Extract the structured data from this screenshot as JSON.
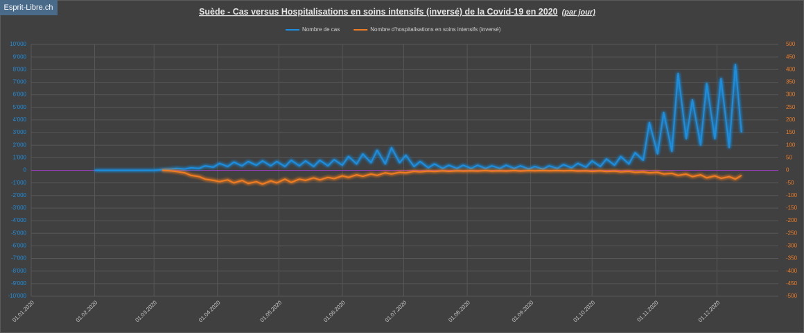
{
  "logo": "Esprit-Libre.ch",
  "chart_data": {
    "type": "line",
    "title": "Suède - Cas versus Hospitalisations en soins intensifs (inversé) de la Covid-19 en 2020",
    "subtitle": "(par jour)",
    "x": [
      "01.02.2020",
      "15.02.2020",
      "01.03.2020",
      "05.03.2020",
      "09.03.2020",
      "12.03.2020",
      "16.03.2020",
      "19.03.2020",
      "23.03.2020",
      "26.03.2020",
      "30.03.2020",
      "02.04.2020",
      "06.04.2020",
      "09.04.2020",
      "13.04.2020",
      "16.04.2020",
      "20.04.2020",
      "23.04.2020",
      "27.04.2020",
      "30.04.2020",
      "04.05.2020",
      "07.05.2020",
      "11.05.2020",
      "14.05.2020",
      "18.05.2020",
      "21.05.2020",
      "25.05.2020",
      "28.05.2020",
      "01.06.2020",
      "04.06.2020",
      "08.06.2020",
      "11.06.2020",
      "15.06.2020",
      "18.06.2020",
      "22.06.2020",
      "25.06.2020",
      "29.06.2020",
      "02.07.2020",
      "06.07.2020",
      "09.07.2020",
      "13.07.2020",
      "16.07.2020",
      "20.07.2020",
      "23.07.2020",
      "27.07.2020",
      "30.07.2020",
      "03.08.2020",
      "06.08.2020",
      "10.08.2020",
      "13.08.2020",
      "17.08.2020",
      "20.08.2020",
      "24.08.2020",
      "27.08.2020",
      "31.08.2020",
      "03.09.2020",
      "07.09.2020",
      "10.09.2020",
      "14.09.2020",
      "17.09.2020",
      "21.09.2020",
      "24.09.2020",
      "28.09.2020",
      "01.10.2020",
      "05.10.2020",
      "08.10.2020",
      "12.10.2020",
      "15.10.2020",
      "19.10.2020",
      "22.10.2020",
      "26.10.2020",
      "29.10.2020",
      "02.11.2020",
      "05.11.2020",
      "09.11.2020",
      "12.11.2020",
      "16.11.2020",
      "19.11.2020",
      "23.11.2020",
      "26.11.2020",
      "30.11.2020",
      "03.12.2020",
      "07.12.2020",
      "10.12.2020",
      "13.12.2020"
    ],
    "xlim": [
      "01.01.2020",
      "31.12.2020"
    ],
    "xticks": [
      "01.01.2020",
      "01.02.2020",
      "01.03.2020",
      "01.04.2020",
      "01.05.2020",
      "01.06.2020",
      "01.07.2020",
      "01.08.2020",
      "01.09.2020",
      "01.10.2020",
      "01.11.2020",
      "01.12.2020"
    ],
    "series": [
      {
        "name": "Nombre de cas",
        "color": "#1e8ee0",
        "axis": "y",
        "values": [
          0,
          0,
          0,
          50,
          100,
          150,
          100,
          200,
          150,
          350,
          250,
          550,
          300,
          650,
          350,
          700,
          400,
          750,
          350,
          700,
          300,
          800,
          350,
          750,
          300,
          800,
          350,
          850,
          400,
          1100,
          500,
          1300,
          600,
          1600,
          500,
          1800,
          600,
          1200,
          300,
          700,
          200,
          500,
          150,
          400,
          150,
          400,
          150,
          400,
          150,
          350,
          150,
          400,
          150,
          350,
          100,
          300,
          100,
          350,
          150,
          450,
          200,
          550,
          250,
          750,
          300,
          900,
          400,
          1100,
          500,
          1400,
          800,
          3800,
          1300,
          4600,
          1500,
          7700,
          2500,
          5600,
          2000,
          6900,
          2500,
          7300,
          1800,
          8400,
          3000
        ]
      },
      {
        "name": "Nombre d'hospitalisations en soins intensifs (inversé)",
        "color": "#f07c24",
        "axis": "y2",
        "values": [
          null,
          null,
          null,
          0,
          -2,
          -5,
          -10,
          -20,
          -25,
          -35,
          -40,
          -45,
          -38,
          -50,
          -40,
          -52,
          -45,
          -55,
          -42,
          -50,
          -35,
          -48,
          -35,
          -40,
          -30,
          -38,
          -28,
          -33,
          -22,
          -28,
          -18,
          -24,
          -15,
          -20,
          -10,
          -15,
          -8,
          -10,
          -4,
          -6,
          -3,
          -5,
          -2,
          -4,
          -2,
          -3,
          -2,
          -3,
          -1,
          -3,
          -2,
          -3,
          -1,
          -3,
          -1,
          -2,
          -1,
          -2,
          -1,
          -2,
          -1,
          -3,
          -2,
          -4,
          -2,
          -5,
          -3,
          -6,
          -4,
          -8,
          -6,
          -10,
          -8,
          -15,
          -12,
          -20,
          -15,
          -25,
          -18,
          -30,
          -22,
          -32,
          -25,
          -35,
          -20
        ]
      }
    ],
    "ylim": [
      -10000,
      10000
    ],
    "yticks": [
      {
        "value": -10000,
        "label": "-10'000"
      },
      {
        "value": -9000,
        "label": "-9'000"
      },
      {
        "value": -8000,
        "label": "-8'000"
      },
      {
        "value": -7000,
        "label": "-7'000"
      },
      {
        "value": -6000,
        "label": "-6'000"
      },
      {
        "value": -5000,
        "label": "-5'000"
      },
      {
        "value": -4000,
        "label": "-4'000"
      },
      {
        "value": -3000,
        "label": "-3'000"
      },
      {
        "value": -2000,
        "label": "-2'000"
      },
      {
        "value": -1000,
        "label": "-1'000"
      },
      0,
      {
        "value": 1000,
        "label": "1'000"
      },
      {
        "value": 2000,
        "label": "2'000"
      },
      {
        "value": 3000,
        "label": "3'000"
      },
      {
        "value": 4000,
        "label": "4'000"
      },
      {
        "value": 5000,
        "label": "5'000"
      },
      {
        "value": 6000,
        "label": "6'000"
      },
      {
        "value": 7000,
        "label": "7'000"
      },
      {
        "value": 8000,
        "label": "8'000"
      },
      {
        "value": 9000,
        "label": "9'000"
      },
      {
        "value": 10000,
        "label": "10'000"
      }
    ],
    "y2lim": [
      -500,
      500
    ],
    "y2ticks": [
      -500,
      -450,
      -400,
      -350,
      -300,
      -250,
      -200,
      -150,
      -100,
      -50,
      0,
      50,
      100,
      150,
      200,
      250,
      300,
      350,
      400,
      450,
      500
    ],
    "grid": true,
    "zero_line_color": "#9a3fbf",
    "legend": "top"
  }
}
